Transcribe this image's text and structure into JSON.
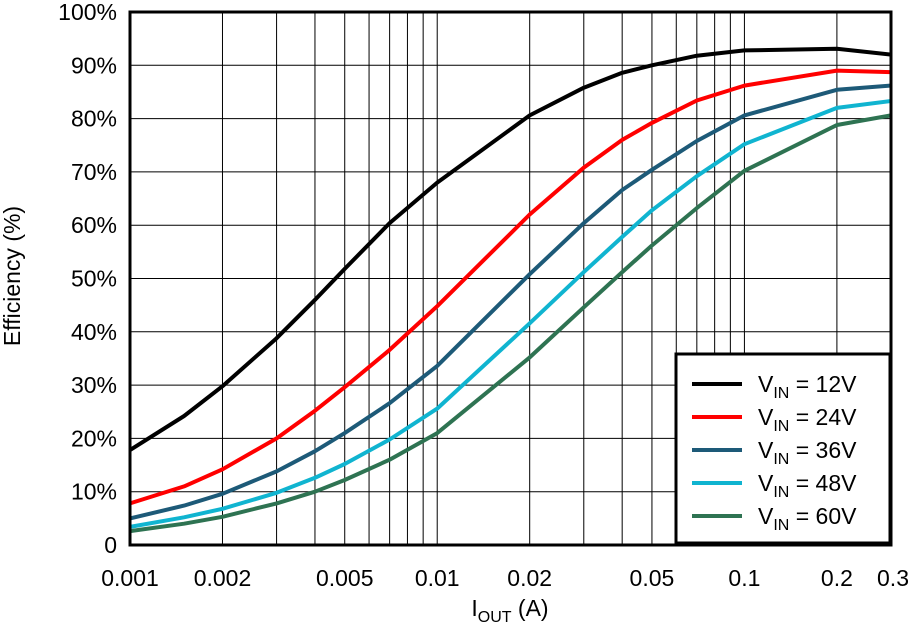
{
  "chart_data": {
    "type": "line",
    "xscale": "log",
    "xlim": [
      0.001,
      0.3
    ],
    "ylim": [
      0,
      100
    ],
    "grid": true,
    "legend_position": "bottom-right",
    "xlabel": {
      "main": "I",
      "sub": "OUT",
      "rest": " (A)"
    },
    "ylabel": "Efficiency (%)",
    "x_ticks": [
      0.001,
      0.002,
      0.005,
      0.01,
      0.02,
      0.05,
      0.1,
      0.2,
      0.3
    ],
    "x_tick_labels": [
      "0.001",
      "0.002",
      "0.005",
      "0.01",
      "0.02",
      "0.05",
      "0.1",
      "0.2",
      "0.3"
    ],
    "y_ticks": [
      0,
      10,
      20,
      30,
      40,
      50,
      60,
      70,
      80,
      90,
      100
    ],
    "y_tick_labels": [
      "0",
      "10%",
      "20%",
      "30%",
      "40%",
      "50%",
      "60%",
      "70%",
      "80%",
      "90%",
      "100%"
    ],
    "series": [
      {
        "name": {
          "main": "V",
          "sub": "IN",
          "rest": " = 12V"
        },
        "color": "#000000",
        "x": [
          0.001,
          0.0015,
          0.002,
          0.003,
          0.004,
          0.005,
          0.007,
          0.01,
          0.02,
          0.03,
          0.04,
          0.05,
          0.07,
          0.1,
          0.2,
          0.3
        ],
        "y": [
          17.8,
          24.2,
          29.8,
          38.8,
          46.0,
          51.8,
          60.4,
          68.0,
          80.6,
          85.8,
          88.6,
          90.0,
          91.8,
          92.8,
          93.1,
          92.0
        ]
      },
      {
        "name": {
          "main": "V",
          "sub": "IN",
          "rest": " = 24V"
        },
        "color": "#ff0000",
        "x": [
          0.001,
          0.0015,
          0.002,
          0.003,
          0.004,
          0.005,
          0.007,
          0.01,
          0.02,
          0.03,
          0.04,
          0.05,
          0.07,
          0.1,
          0.2,
          0.3
        ],
        "y": [
          7.8,
          11.0,
          14.2,
          20.0,
          25.2,
          29.6,
          36.6,
          44.8,
          62.0,
          70.8,
          76.0,
          79.2,
          83.4,
          86.2,
          89.0,
          88.7
        ]
      },
      {
        "name": {
          "main": "V",
          "sub": "IN",
          "rest": " = 36V"
        },
        "color": "#1d5a78",
        "x": [
          0.001,
          0.0015,
          0.002,
          0.003,
          0.004,
          0.005,
          0.007,
          0.01,
          0.02,
          0.03,
          0.04,
          0.05,
          0.07,
          0.1,
          0.2,
          0.3
        ],
        "y": [
          5.0,
          7.4,
          9.6,
          13.8,
          17.6,
          21.0,
          26.6,
          33.6,
          50.8,
          60.4,
          66.6,
          70.4,
          75.8,
          80.6,
          85.4,
          86.2
        ]
      },
      {
        "name": {
          "main": "V",
          "sub": "IN",
          "rest": " = 48V"
        },
        "color": "#10b4d0",
        "x": [
          0.001,
          0.0015,
          0.002,
          0.003,
          0.004,
          0.005,
          0.007,
          0.01,
          0.02,
          0.03,
          0.04,
          0.05,
          0.07,
          0.1,
          0.2,
          0.3
        ],
        "y": [
          3.4,
          5.2,
          6.8,
          9.8,
          12.6,
          15.2,
          19.8,
          25.6,
          41.6,
          51.2,
          57.8,
          62.8,
          69.2,
          75.2,
          82.0,
          83.3
        ]
      },
      {
        "name": {
          "main": "V",
          "sub": "IN",
          "rest": " = 60V"
        },
        "color": "#2e7352",
        "x": [
          0.001,
          0.0015,
          0.002,
          0.003,
          0.004,
          0.005,
          0.007,
          0.01,
          0.02,
          0.03,
          0.04,
          0.05,
          0.07,
          0.1,
          0.2,
          0.3
        ],
        "y": [
          2.6,
          4.0,
          5.3,
          7.8,
          10.0,
          12.2,
          16.0,
          21.0,
          35.2,
          44.6,
          51.2,
          56.2,
          63.2,
          70.2,
          78.8,
          80.6
        ]
      }
    ]
  }
}
